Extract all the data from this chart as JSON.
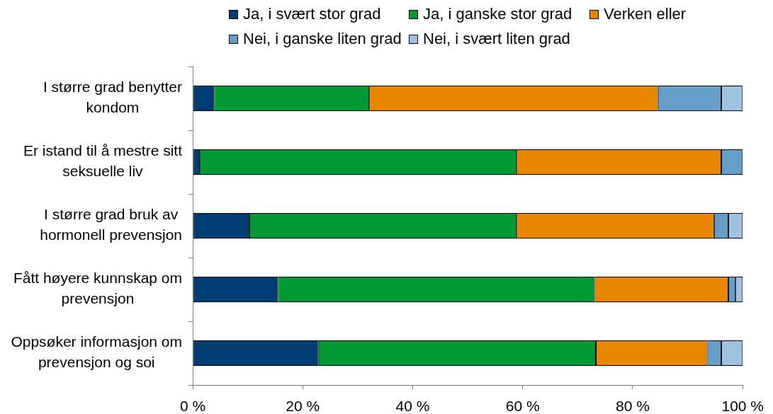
{
  "chart_data": {
    "type": "bar",
    "orientation": "horizontal",
    "stacked": true,
    "categories": [
      "I større grad benytter kondom",
      "Er istand til å mestre sitt seksuelle liv",
      "I større grad bruk av hormonell prevensjon",
      "Fått høyere kunnskap om prevensjon",
      "Oppsøker informasjon om prevensjon og soi"
    ],
    "series": [
      {
        "name": "Ja, i svært stor grad",
        "color": "#003d73",
        "values": [
          3.9,
          1.3,
          10.3,
          15.5,
          22.9
        ]
      },
      {
        "name": "Ja, i ganske stor grad",
        "color": "#009933",
        "values": [
          28.2,
          57.6,
          48.6,
          57.6,
          50.4
        ]
      },
      {
        "name": "Verken eller",
        "color": "#e88600",
        "values": [
          52.5,
          37.2,
          35.9,
          24.3,
          20.3
        ]
      },
      {
        "name": "Nei, i ganske liten grad",
        "color": "#659fc9",
        "values": [
          11.5,
          3.9,
          2.6,
          1.3,
          2.5
        ]
      },
      {
        "name": "Nei, i svært liten grad",
        "color": "#9fc3df",
        "values": [
          3.9,
          0,
          2.6,
          1.3,
          3.9
        ]
      }
    ],
    "xlim": [
      0,
      100
    ],
    "xticks": [
      {
        "value": 0,
        "label": "0 %"
      },
      {
        "value": 20,
        "label": "20 %"
      },
      {
        "value": 40,
        "label": "40 %"
      },
      {
        "value": 60,
        "label": "60 %"
      },
      {
        "value": 80,
        "label": "80 %"
      },
      {
        "value": 100,
        "label": "100 %"
      }
    ],
    "legend": "top"
  }
}
